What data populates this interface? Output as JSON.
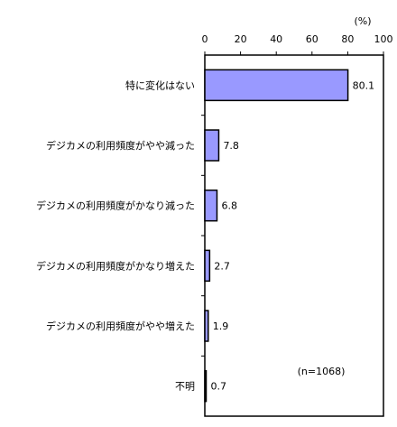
{
  "chart_data": {
    "type": "bar",
    "orientation": "horizontal",
    "unit_label": "(%)",
    "note": "(n=1068)",
    "xlim": [
      0,
      100
    ],
    "ticks": [
      0,
      20,
      40,
      60,
      80,
      100
    ],
    "categories": [
      "特に変化はない",
      "デジカメの利用頻度がやや減った",
      "デジカメの利用頻度がかなり減った",
      "デジカメの利用頻度がかなり増えた",
      "デジカメの利用頻度がやや増えた",
      "不明"
    ],
    "values": [
      80.1,
      7.8,
      6.8,
      2.7,
      1.9,
      0.7
    ],
    "value_labels": [
      "80.1",
      "7.8",
      "6.8",
      "2.7",
      "1.9",
      "0.7"
    ],
    "bar_color": "#9999ff",
    "grid": false
  }
}
